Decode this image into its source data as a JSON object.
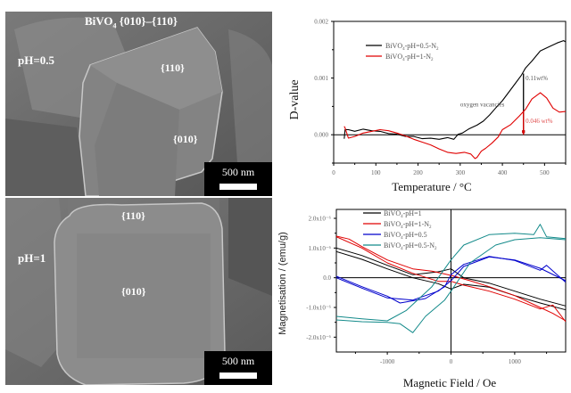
{
  "sem_images": [
    {
      "id": "top",
      "title_main": "BiVO",
      "title_sub": "4",
      "title_rest": " {010}–{110}",
      "ph_label": "pH=0.5",
      "facets": [
        "{110}",
        "{010}"
      ],
      "scale_label": "500 nm"
    },
    {
      "id": "bottom",
      "ph_label": "pH=1",
      "facets": [
        "{110}",
        "{010}"
      ],
      "scale_label": "500 nm"
    }
  ],
  "chart_data": [
    {
      "type": "line",
      "title": "",
      "xlabel": "Temperature / °C",
      "ylabel": "D-value",
      "xlim": [
        0,
        550
      ],
      "ylim": [
        -0.0005,
        0.002
      ],
      "xticks": [
        0,
        100,
        200,
        300,
        400,
        500
      ],
      "xtick_labels": [
        "0",
        "100",
        "200",
        "300",
        "400",
        "500"
      ],
      "yticks": [
        0.0,
        0.001,
        0.002
      ],
      "ytick_labels": [
        "0.000",
        "0.001",
        "0.002"
      ],
      "grid": false,
      "zero_line": true,
      "legend_position": "top-left",
      "series": [
        {
          "name": "BiVO4-pH=0.5-N2",
          "legend_main": "BiVO",
          "legend_sub": "4",
          "legend_rest": "-pH=0.5-N",
          "legend_sub2": "2",
          "color": "#000000",
          "x": [
            25,
            27,
            35,
            50,
            70,
            90,
            110,
            130,
            150,
            170,
            190,
            210,
            230,
            250,
            270,
            285,
            295,
            305,
            320,
            340,
            355,
            370,
            385,
            400,
            415,
            430,
            445,
            455,
            470,
            490,
            510,
            530,
            545,
            550
          ],
          "y": [
            -8e-05,
            0.0001,
            8e-05,
            7e-05,
            9e-05,
            8e-05,
            5e-05,
            3e-05,
            0.0,
            -2e-05,
            -4e-05,
            -6e-05,
            -7e-05,
            -7e-05,
            -6e-05,
            -7e-05,
            0.0,
            3e-05,
            0.0001,
            0.00017,
            0.00024,
            0.00035,
            0.00048,
            0.0006,
            0.00075,
            0.0009,
            0.00105,
            0.00118,
            0.0013,
            0.00148,
            0.00155,
            0.00162,
            0.00166,
            0.00164
          ]
        },
        {
          "name": "BiVO4-pH=1-N2",
          "legend_main": "BiVO",
          "legend_sub": "4",
          "legend_rest": "-pH=1-N",
          "legend_sub2": "2",
          "color": "#e00000",
          "x": [
            25,
            27,
            35,
            50,
            70,
            90,
            110,
            130,
            150,
            170,
            190,
            210,
            230,
            250,
            270,
            290,
            310,
            325,
            335,
            340,
            350,
            360,
            375,
            390,
            400,
            420,
            440,
            455,
            470,
            490,
            505,
            520,
            535,
            550
          ],
          "y": [
            0.00015,
            0.00012,
            -6e-05,
            -3e-05,
            3e-05,
            6e-05,
            9e-05,
            7e-05,
            3e-05,
            -2e-05,
            -8e-05,
            -0.00013,
            -0.00018,
            -0.00025,
            -0.00031,
            -0.00033,
            -0.00031,
            -0.00034,
            -0.00042,
            -0.0004,
            -0.00029,
            -0.00024,
            -0.00015,
            -4e-05,
            9e-05,
            0.00018,
            0.00033,
            0.00045,
            0.00063,
            0.00074,
            0.00065,
            0.00047,
            0.0004,
            0.00041
          ]
        }
      ],
      "annotations": [
        {
          "text": "0.11wt%",
          "x": 455,
          "y": 0.00096,
          "color": "#555555"
        },
        {
          "text": "oxygen vacancies",
          "x": 300,
          "y": 0.0005,
          "color": "#555555"
        },
        {
          "text": "0.046 wt%",
          "x": 455,
          "y": 0.00021,
          "color": "#e05050"
        }
      ],
      "markers": [
        {
          "x": 450,
          "y_from": 0.00108,
          "y_to": 0.0,
          "color": "#000000",
          "label": "0.11wt%"
        },
        {
          "x": 450,
          "y_from": 0.00043,
          "y_to": 0.0,
          "color": "#e00000",
          "label": "0.046 wt%"
        }
      ]
    },
    {
      "type": "line",
      "title": "",
      "xlabel": "Magnetic Field / Oe",
      "ylabel": "Magnetisation / (emu/g)",
      "xlim": [
        -1800,
        1800
      ],
      "ylim": [
        -2.5e-06,
        2.3e-06
      ],
      "xticks": [
        -1000,
        0,
        1000
      ],
      "xtick_labels": [
        "-1000",
        "0",
        "1000"
      ],
      "yticks": [
        2e-06,
        1e-06,
        0.0,
        -1e-06,
        -2e-06
      ],
      "ytick_labels": [
        "2.0x10⁻⁶",
        "1.0x10⁻⁶",
        "0.0",
        "-1.0x10⁻⁶",
        "-2.0x10⁻⁶"
      ],
      "grid": false,
      "zero_line": true,
      "legend_position": "top-center",
      "series": [
        {
          "name": "BiVO4-pH=1",
          "legend_main": "BiVO",
          "legend_sub": "4",
          "legend_rest": "-pH=1",
          "legend_sub2": "",
          "color": "#000000",
          "branches": [
            {
              "x": [
                -1800,
                -1400,
                -1000,
                -600,
                -200,
                0,
                200,
                600,
                1000,
                1400,
                1800
              ],
              "y": [
                1e-06,
                7.5e-07,
                4.2e-07,
                1e-07,
                2e-07,
                3e-07,
                0.0,
                -1.8e-07,
                -4.5e-07,
                -7.2e-07,
                -9.5e-07
              ]
            },
            {
              "x": [
                -1800,
                -1400,
                -1000,
                -600,
                -200,
                0,
                200,
                600,
                1000,
                1400,
                1800
              ],
              "y": [
                8.8e-07,
                6.2e-07,
                3e-07,
                0.0,
                -2e-07,
                -3.8e-07,
                -2.2e-07,
                -3.2e-07,
                -6e-07,
                -8.5e-07,
                -1.08e-06
              ]
            }
          ]
        },
        {
          "name": "BiVO4-pH=1-N2",
          "legend_main": "BiVO",
          "legend_sub": "4",
          "legend_rest": "-pH=1-N",
          "legend_sub2": "2",
          "color": "#e00000",
          "branches": [
            {
              "x": [
                -1800,
                -1600,
                -1400,
                -1000,
                -600,
                -300,
                0,
                300,
                600,
                1000,
                1400,
                1600,
                1800
              ],
              "y": [
                1.4e-06,
                1.3e-06,
                1.05e-06,
                6e-07,
                3e-07,
                2.2e-07,
                8e-08,
                -1e-07,
                -3e-07,
                -6e-07,
                -1e-06,
                -1.2e-06,
                -1.45e-06
              ]
            },
            {
              "x": [
                -1800,
                -1400,
                -1000,
                -600,
                -200,
                0,
                200,
                600,
                1000,
                1400,
                1600,
                1800
              ],
              "y": [
                1.38e-06,
                1e-06,
                5e-07,
                1.5e-07,
                -1.2e-07,
                -1.2e-07,
                -2.5e-07,
                -4.5e-07,
                -7.2e-07,
                -1.05e-06,
                -9.2e-07,
                -1.48e-06
              ]
            }
          ]
        },
        {
          "name": "BiVO4-pH=0.5",
          "legend_main": "BiVO",
          "legend_sub": "4",
          "legend_rest": "-pH=0.5",
          "legend_sub2": "",
          "color": "#0000cc",
          "branches": [
            {
              "x": [
                -1800,
                -1400,
                -1000,
                -800,
                -400,
                -100,
                0,
                200,
                600,
                1000,
                1400,
                1500,
                1800
              ],
              "y": [
                5e-08,
                -3e-07,
                -6.2e-07,
                -8.5e-07,
                -7e-07,
                -3e-07,
                1e-07,
                4.5e-07,
                7.2e-07,
                5.8e-07,
                2.5e-07,
                4.2e-07,
                -1.5e-07
              ]
            },
            {
              "x": [
                -1800,
                -1400,
                -1000,
                -600,
                -200,
                0,
                200,
                600,
                1000,
                1400,
                1800
              ],
              "y": [
                0.0,
                -3.5e-07,
                -6.8e-07,
                -7.5e-07,
                -4.5e-07,
                -1e-07,
                3.8e-07,
                7e-07,
                6e-07,
                3.2e-07,
                -1e-07
              ]
            }
          ]
        },
        {
          "name": "BiVO4-pH=0.5-N2",
          "legend_main": "BiVO",
          "legend_sub": "4",
          "legend_rest": "-pH=0.5-N",
          "legend_sub2": "2",
          "color": "#138a8a",
          "branches": [
            {
              "x": [
                -1800,
                -1400,
                -1000,
                -700,
                -300,
                0,
                200,
                600,
                1000,
                1300,
                1400,
                1500,
                1800
              ],
              "y": [
                -1.3e-06,
                -1.38e-06,
                -1.45e-06,
                -1.1e-06,
                -3e-07,
                6e-07,
                1.1e-06,
                1.45e-06,
                1.5e-06,
                1.45e-06,
                1.8e-06,
                1.38e-06,
                1.32e-06
              ]
            },
            {
              "x": [
                -1800,
                -1400,
                -1000,
                -800,
                -600,
                -400,
                -100,
                0,
                300,
                700,
                1000,
                1400,
                1800
              ],
              "y": [
                -1.42e-06,
                -1.48e-06,
                -1.5e-06,
                -1.55e-06,
                -1.85e-06,
                -1.3e-06,
                -7.5e-07,
                -4.5e-07,
                5e-07,
                1.1e-06,
                1.28e-06,
                1.35e-06,
                1.28e-06
              ]
            }
          ]
        }
      ]
    }
  ]
}
